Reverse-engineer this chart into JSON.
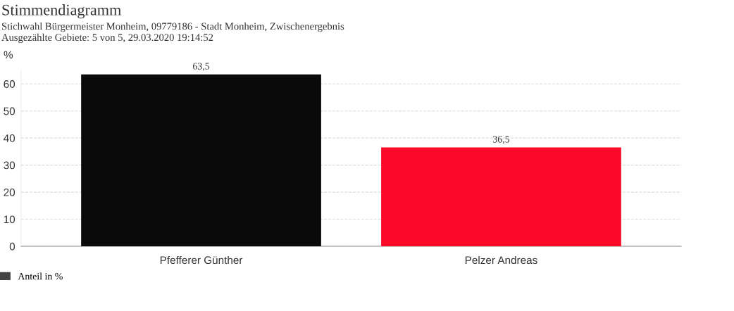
{
  "chart_data": {
    "type": "bar",
    "title": "Stimmendiagramm",
    "subtitle": "Stichwahl Bürgermeister Monheim, 09779186 - Stadt Monheim, Zwischenergebnis\nAusgezählte Gebiete: 5 von 5, 29.03.2020 19:14:52",
    "ylabel": "%",
    "categories": [
      "Pfefferer Günther",
      "Pelzer Andreas"
    ],
    "series": [
      {
        "name": "Anteil in %",
        "color": "#444444",
        "colors": [
          "#0a0a0a",
          "#fa0a28"
        ],
        "values": [
          63.5,
          36.5
        ],
        "value_labels": [
          "63,5",
          "36,5"
        ]
      }
    ],
    "ylim": [
      0,
      65
    ],
    "yticks": [
      0,
      10,
      20,
      30,
      40,
      50,
      60
    ],
    "grid": "y",
    "legend": "bottom left"
  }
}
